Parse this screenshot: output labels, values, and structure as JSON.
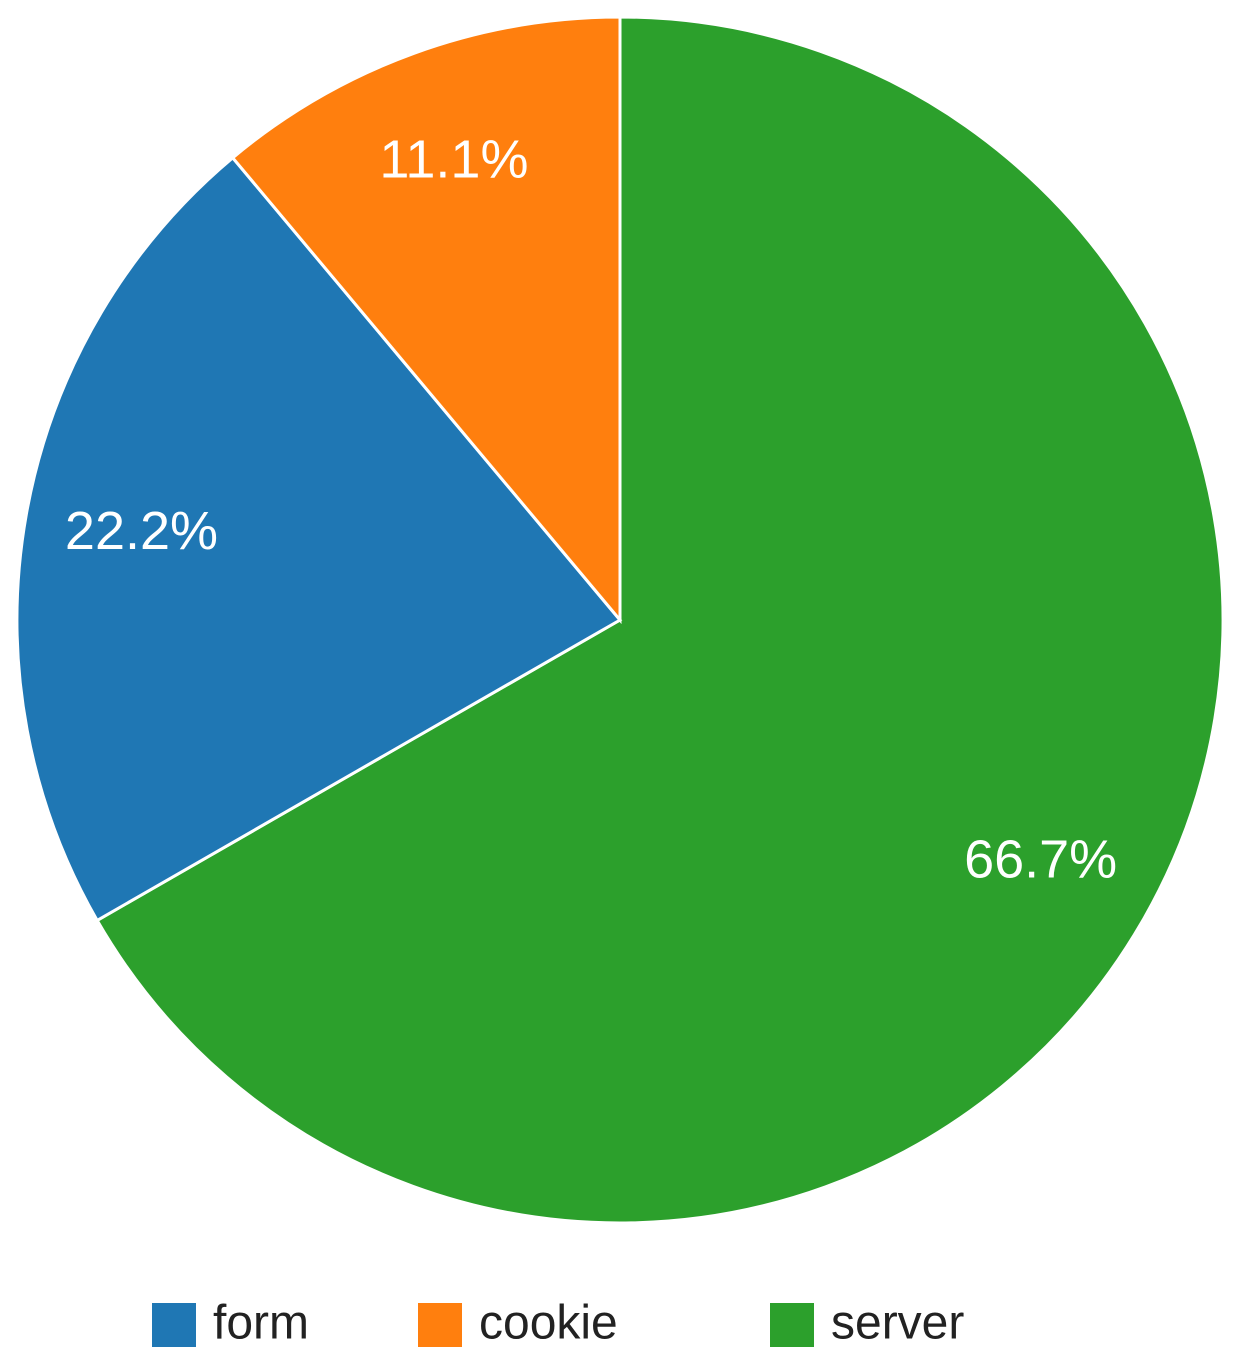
{
  "chart_data": {
    "type": "pie",
    "categories": [
      "form",
      "cookie",
      "server"
    ],
    "values": [
      22.2,
      11.1,
      66.7
    ],
    "value_labels": [
      "22.2%",
      "11.1%",
      "66.7%"
    ],
    "colors": [
      "#1f77b4",
      "#ff7f0e",
      "#2ca02c"
    ],
    "legend": "bottom"
  }
}
